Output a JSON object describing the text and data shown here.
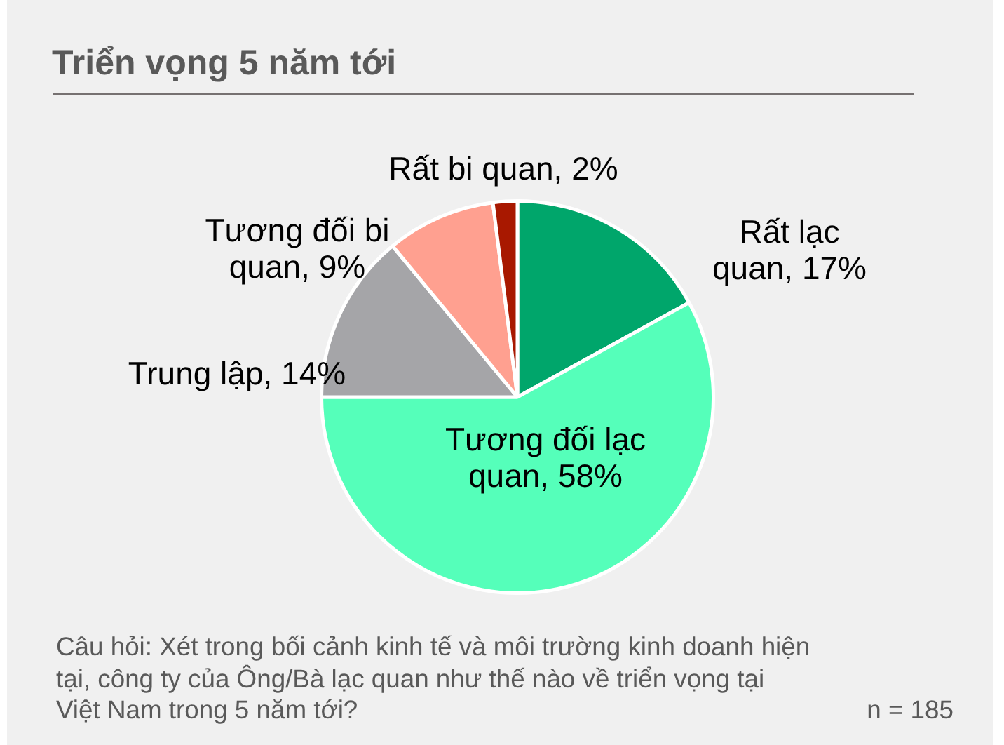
{
  "chart_data": {
    "type": "pie",
    "title": "Triển vọng 5 năm tới",
    "categories": [
      "Rất lạc quan",
      "Tương đối lạc quan",
      "Trung lập",
      "Tương đối bi quan",
      "Rất bi quan"
    ],
    "values": [
      17,
      58,
      14,
      9,
      2
    ],
    "value_labels": [
      "17%",
      "58%",
      "14%",
      "9%",
      "2%"
    ],
    "colors": [
      "#00a66b",
      "#55ffba",
      "#a5a5a8",
      "#ffa090",
      "#a81800"
    ],
    "legend": false,
    "annotations": [
      "Câu hỏi: Xét trong bối cảnh kinh tế và môi trường kinh doanh hiện tại, công ty của Ông/Bà lạc quan như thế nào về triển vọng tại Việt Nam trong 5 năm tới?",
      "n = 185"
    ]
  }
}
